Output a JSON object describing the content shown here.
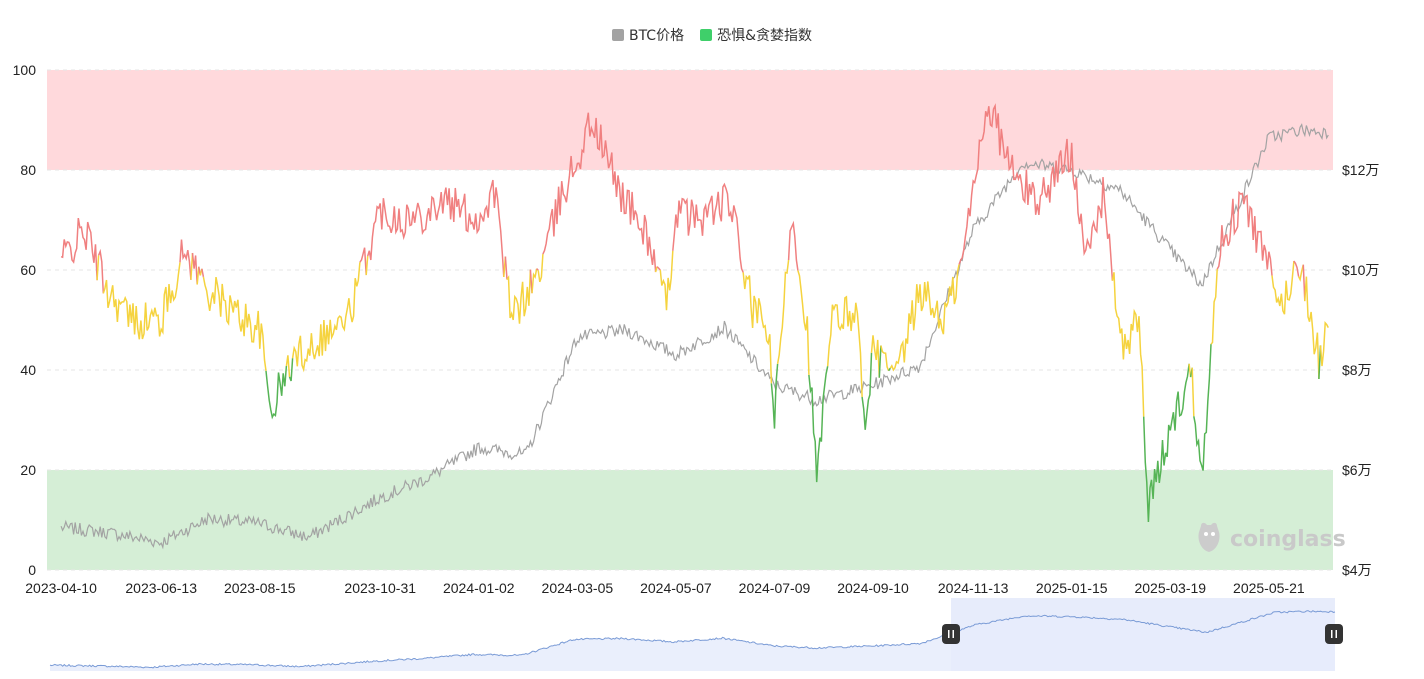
{
  "legend": {
    "btc_label": "BTC价格",
    "fg_label": "恐惧&贪婪指数"
  },
  "colors": {
    "btc": "#a3a3a3",
    "fg_legend": "#3fcf6a",
    "greed": "#f08080",
    "neutral": "#f5d33f",
    "fear": "#56b456",
    "greed_zone": "#ffd9dc",
    "fear_zone": "#d5eed6",
    "navigator_line": "#7a9bd6",
    "navigator_fill": "#e6ecfb",
    "navigator_selected": "#d3ddf8"
  },
  "watermark": {
    "text": "coinglass",
    "icon": "coinglass-logo-icon"
  },
  "chart_data": {
    "type": "line",
    "x_tick_labels": [
      "2023-04-10",
      "2023-06-13",
      "2023-08-15",
      "2023-10-31",
      "2024-01-02",
      "2024-03-05",
      "2024-05-07",
      "2024-07-09",
      "2024-09-10",
      "2024-11-13",
      "2025-01-15",
      "2025-03-19",
      "2025-05-21"
    ],
    "y_left": {
      "range": [
        0,
        100
      ],
      "ticks": [
        "0",
        "20",
        "40",
        "60",
        "80",
        "100"
      ]
    },
    "y_right": {
      "range": [
        20000,
        120000
      ],
      "ticks": [
        "$4万",
        "$6万",
        "$8万",
        "$10万",
        "$12万"
      ]
    },
    "zones": {
      "greed_above": 80,
      "fear_below": 20,
      "neutral_band": [
        40,
        60
      ]
    },
    "grid": "horizontal dashed",
    "legend_position": "top-center",
    "series": [
      {
        "name": "BTC价格",
        "axis": "right",
        "x": [
          "2023-04-10",
          "2023-05-10",
          "2023-06-13",
          "2023-07-13",
          "2023-08-15",
          "2023-09-15",
          "2023-10-31",
          "2023-12-01",
          "2024-01-02",
          "2024-02-01",
          "2024-03-05",
          "2024-04-05",
          "2024-05-07",
          "2024-06-07",
          "2024-07-09",
          "2024-08-05",
          "2024-09-10",
          "2024-10-10",
          "2024-11-13",
          "2024-12-15",
          "2025-01-15",
          "2025-02-15",
          "2025-03-19",
          "2025-04-08",
          "2025-05-21",
          "2025-06-10",
          "2025-06-28"
        ],
        "values": [
          28500,
          27500,
          25500,
          30300,
          29300,
          26500,
          34500,
          38500,
          44500,
          43000,
          66500,
          68000,
          63000,
          68500,
          57000,
          54000,
          57000,
          60800,
          88000,
          101500,
          100000,
          96000,
          84000,
          77000,
          106500,
          108000,
          107500
        ]
      },
      {
        "name": "恐惧&贪婪指数",
        "axis": "left",
        "x": [
          "2023-04-10",
          "2023-04-25",
          "2023-05-10",
          "2023-05-25",
          "2023-06-13",
          "2023-06-28",
          "2023-07-13",
          "2023-07-28",
          "2023-08-15",
          "2023-08-22",
          "2023-09-05",
          "2023-09-20",
          "2023-10-10",
          "2023-10-31",
          "2023-11-20",
          "2023-12-10",
          "2024-01-02",
          "2024-01-12",
          "2024-01-23",
          "2024-02-10",
          "2024-02-25",
          "2024-03-05",
          "2024-03-14",
          "2024-04-01",
          "2024-04-20",
          "2024-05-01",
          "2024-05-07",
          "2024-05-20",
          "2024-06-10",
          "2024-06-25",
          "2024-07-05",
          "2024-07-09",
          "2024-07-20",
          "2024-07-30",
          "2024-08-05",
          "2024-08-15",
          "2024-08-30",
          "2024-09-06",
          "2024-09-10",
          "2024-09-25",
          "2024-10-10",
          "2024-10-25",
          "2024-11-05",
          "2024-11-13",
          "2024-11-22",
          "2024-12-10",
          "2024-12-25",
          "2025-01-15",
          "2025-01-25",
          "2025-02-05",
          "2025-02-15",
          "2025-02-27",
          "2025-03-05",
          "2025-03-19",
          "2025-04-01",
          "2025-04-08",
          "2025-04-20",
          "2025-05-05",
          "2025-05-21",
          "2025-05-28",
          "2025-06-10",
          "2025-06-22",
          "2025-06-28"
        ],
        "values": [
          62,
          68,
          56,
          50,
          50,
          64,
          56,
          52,
          48,
          32,
          42,
          46,
          50,
          72,
          70,
          74,
          70,
          76,
          50,
          60,
          76,
          82,
          90,
          76,
          66,
          52,
          72,
          70,
          74,
          52,
          48,
          30,
          72,
          48,
          18,
          50,
          52,
          28,
          44,
          38,
          56,
          50,
          60,
          76,
          94,
          78,
          74,
          84,
          62,
          76,
          44,
          50,
          12,
          28,
          40,
          20,
          66,
          74,
          60,
          52,
          62,
          42,
          48
        ]
      }
    ]
  }
}
